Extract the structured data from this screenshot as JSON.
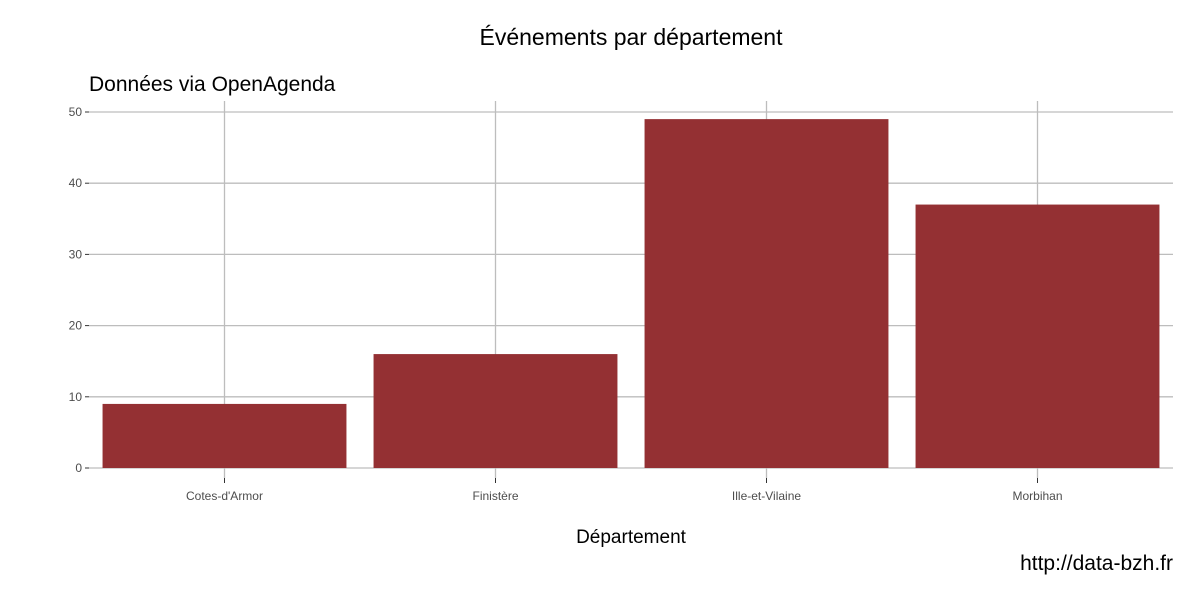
{
  "chart_data": {
    "type": "bar",
    "title": "Événements par département",
    "subtitle": "Données via OpenAgenda",
    "caption": "http://data-bzh.fr",
    "xlabel": "Département",
    "ylabel": "",
    "categories": [
      "Cotes-d'Armor",
      "Finistère",
      "Ille-et-Vilaine",
      "Morbihan"
    ],
    "values": [
      9,
      16,
      49,
      37
    ],
    "ylim": [
      0,
      51
    ],
    "yticks": [
      0,
      10,
      20,
      30,
      40,
      50
    ],
    "grid": true,
    "bar_color": "#943033"
  }
}
